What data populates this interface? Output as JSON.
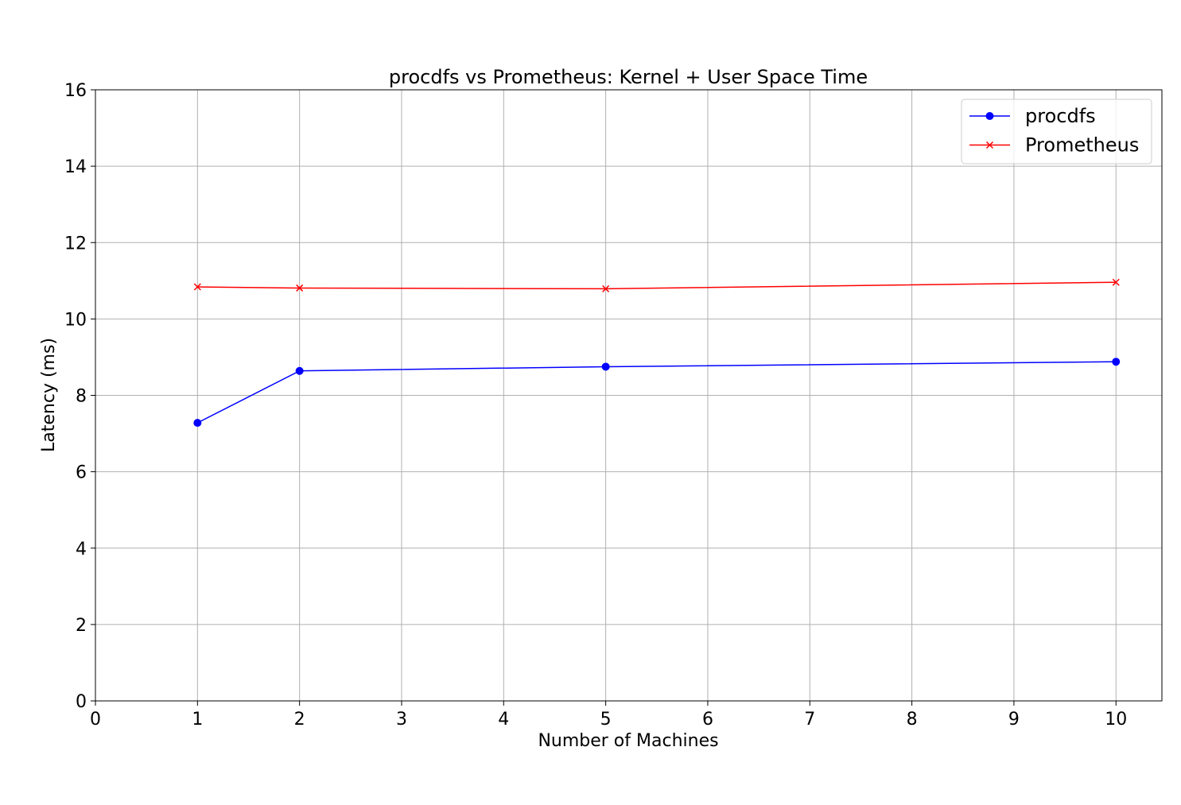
{
  "chart_data": {
    "type": "line",
    "title": "procdfs vs Prometheus: Kernel + User Space Time",
    "xlabel": "Number of Machines",
    "ylabel": "Latency (ms)",
    "xlim": [
      0,
      10.45
    ],
    "ylim": [
      0,
      16
    ],
    "xticks": [
      0,
      1,
      2,
      3,
      4,
      5,
      6,
      7,
      8,
      9,
      10
    ],
    "yticks": [
      0,
      2,
      4,
      6,
      8,
      10,
      12,
      14,
      16
    ],
    "grid": true,
    "legend_position": "top-right",
    "x": [
      1,
      2,
      5,
      10
    ],
    "series": [
      {
        "name": "procdfs",
        "color": "#0000ff",
        "marker": "circle",
        "values": [
          7.28,
          8.64,
          8.75,
          8.88
        ]
      },
      {
        "name": "Prometheus",
        "color": "#ff0000",
        "marker": "x",
        "values": [
          10.84,
          10.81,
          10.79,
          10.96
        ]
      }
    ]
  }
}
